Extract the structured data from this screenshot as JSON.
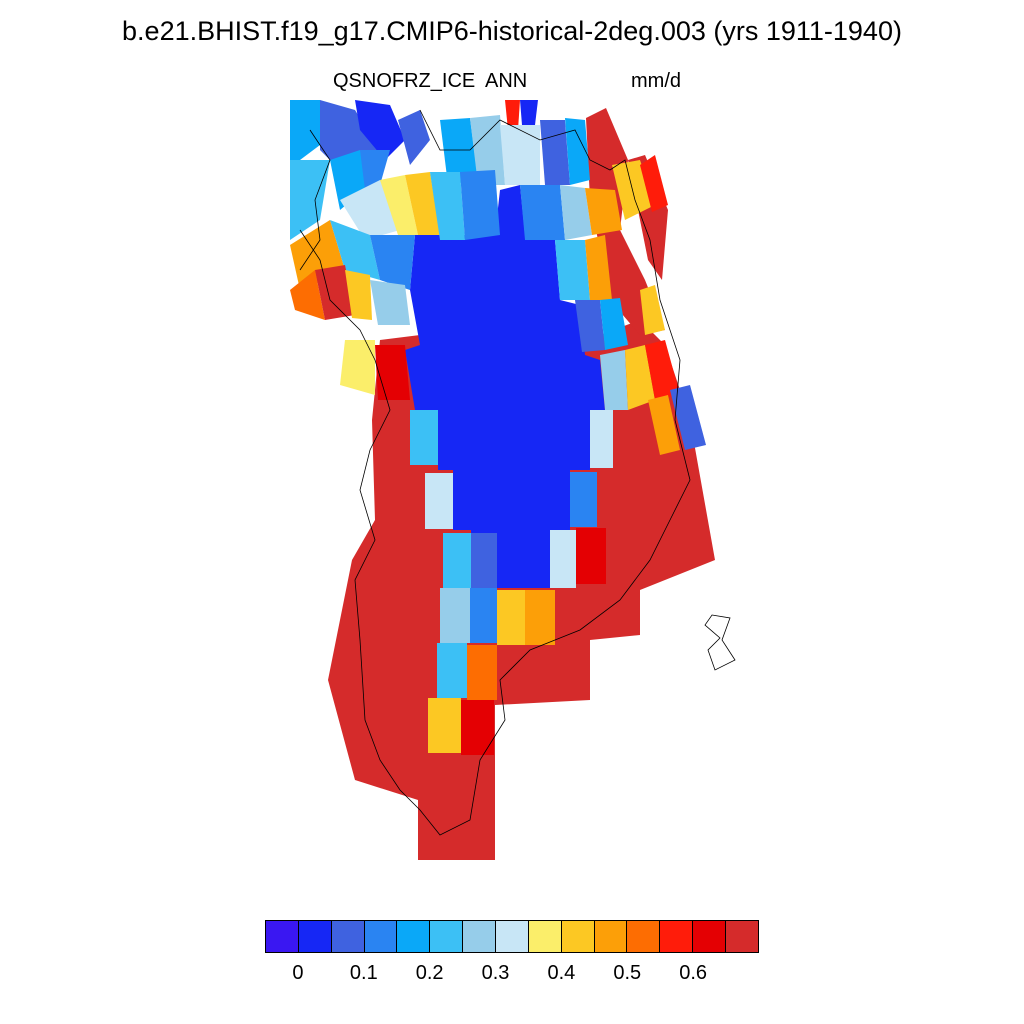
{
  "header": {
    "title": "b.e21.BHIST.f19_g17.CMIP6-historical-2deg.003 (yrs 1911-1940)",
    "variable": "QSNOFRZ_ICE",
    "season": "ANN",
    "units": "mm/d"
  },
  "colorbar": {
    "colors": [
      "#3a17f2",
      "#1627f5",
      "#3f62e0",
      "#2a84f2",
      "#0aa8f8",
      "#3cc0f5",
      "#96cdea",
      "#c8e6f6",
      "#fbee6a",
      "#fcc823",
      "#fc9f08",
      "#fd6d02",
      "#ff1c0a",
      "#e40003",
      "#d52b2b"
    ],
    "tick_labels": [
      "0",
      "0.1",
      "0.2",
      "0.3",
      "0.4",
      "0.5",
      "0.6"
    ]
  },
  "map": {
    "region": "Greenland",
    "description_colors": {
      "interior": "#1627f5",
      "margin": "#d52b2b"
    }
  }
}
